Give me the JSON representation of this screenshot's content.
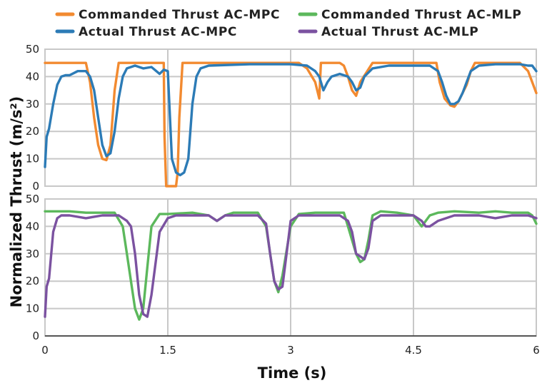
{
  "chart_data": [
    {
      "type": "line",
      "panel": "top",
      "xlim": [
        0,
        6
      ],
      "ylim": [
        0,
        50
      ],
      "yticks": [
        0,
        10,
        20,
        30,
        40,
        50
      ],
      "grid": true,
      "series": [
        {
          "name": "Commanded Thrust AC-MPC",
          "color": "#f28a30",
          "x": [
            0,
            0.5,
            0.55,
            0.6,
            0.65,
            0.7,
            0.75,
            0.8,
            0.85,
            0.9,
            1.0,
            1.2,
            1.45,
            1.46,
            1.48,
            1.55,
            1.6,
            1.62,
            1.64,
            1.68,
            1.8,
            2.0,
            2.5,
            3.0,
            3.1,
            3.2,
            3.3,
            3.35,
            3.37,
            3.4,
            3.6,
            3.65,
            3.7,
            3.75,
            3.8,
            3.85,
            4.0,
            4.5,
            4.78,
            4.82,
            4.88,
            4.95,
            5.0,
            5.05,
            5.1,
            5.15,
            5.2,
            5.25,
            5.5,
            5.8,
            5.9,
            5.95,
            6.0
          ],
          "y": [
            45,
            45,
            38,
            25,
            15,
            10,
            9.5,
            15,
            35,
            45,
            45,
            45,
            45,
            18,
            0,
            0,
            0,
            5,
            25,
            45,
            45,
            45,
            45,
            45,
            45,
            43,
            38,
            32,
            45,
            45,
            45,
            44,
            40,
            35,
            33,
            38,
            45,
            45,
            45,
            38,
            32,
            29.5,
            29,
            31,
            34,
            37,
            42,
            45,
            45,
            45,
            42,
            38,
            34
          ]
        },
        {
          "name": "Actual Thrust AC-MPC",
          "color": "#2c7bb6",
          "x": [
            0,
            0.02,
            0.05,
            0.1,
            0.15,
            0.2,
            0.25,
            0.3,
            0.4,
            0.5,
            0.55,
            0.6,
            0.65,
            0.7,
            0.75,
            0.8,
            0.85,
            0.9,
            0.95,
            1.0,
            1.1,
            1.2,
            1.3,
            1.4,
            1.45,
            1.5,
            1.55,
            1.6,
            1.65,
            1.7,
            1.75,
            1.8,
            1.85,
            1.9,
            2.0,
            2.5,
            3.0,
            3.2,
            3.3,
            3.35,
            3.4,
            3.45,
            3.5,
            3.6,
            3.7,
            3.75,
            3.8,
            3.85,
            3.9,
            4.0,
            4.2,
            4.5,
            4.7,
            4.8,
            4.85,
            4.9,
            4.95,
            5.0,
            5.05,
            5.1,
            5.15,
            5.2,
            5.3,
            5.5,
            5.8,
            5.9,
            5.95,
            6.0
          ],
          "y": [
            7,
            18,
            21,
            30,
            37,
            40,
            40.5,
            40.5,
            42,
            42,
            40,
            35,
            25,
            15,
            11,
            12,
            20,
            32,
            40,
            43,
            44,
            43,
            43.5,
            41,
            42.5,
            42,
            10,
            5,
            4,
            5,
            10,
            30,
            40,
            43,
            44,
            44.5,
            44.5,
            44,
            42,
            40,
            35,
            38,
            40,
            41,
            40,
            38,
            35,
            36,
            40,
            43,
            44,
            44,
            44,
            42,
            38,
            33,
            30,
            30,
            31,
            34,
            38,
            42,
            44,
            44.5,
            44.5,
            44,
            44,
            42
          ]
        }
      ]
    },
    {
      "type": "line",
      "panel": "bottom",
      "xlim": [
        0,
        6
      ],
      "ylim": [
        0,
        50
      ],
      "yticks": [
        0,
        10,
        20,
        30,
        40,
        50
      ],
      "grid": true,
      "series": [
        {
          "name": "Commanded Thrust AC-MLP",
          "color": "#5cb85c",
          "x": [
            0,
            0.3,
            0.5,
            0.7,
            0.85,
            0.95,
            1.0,
            1.05,
            1.1,
            1.15,
            1.2,
            1.25,
            1.3,
            1.4,
            1.5,
            1.8,
            2.0,
            2.1,
            2.2,
            2.3,
            2.5,
            2.6,
            2.7,
            2.75,
            2.8,
            2.85,
            2.9,
            3.0,
            3.1,
            3.3,
            3.5,
            3.65,
            3.7,
            3.75,
            3.8,
            3.85,
            3.9,
            3.95,
            4.0,
            4.1,
            4.3,
            4.5,
            4.55,
            4.6,
            4.65,
            4.7,
            4.8,
            5.0,
            5.3,
            5.5,
            5.7,
            5.85,
            5.9,
            5.95,
            6.0
          ],
          "y": [
            45.5,
            45.5,
            45,
            45,
            45,
            40,
            30,
            20,
            10,
            6,
            10,
            25,
            40,
            44.5,
            44.5,
            45,
            44,
            42,
            44,
            45,
            45,
            45,
            40,
            30,
            20,
            16,
            22,
            40,
            44.5,
            45,
            45,
            45,
            40,
            35,
            30,
            27,
            28,
            35,
            44,
            45.5,
            45,
            44,
            42,
            40,
            42,
            44,
            45,
            45.5,
            45,
            45.5,
            45,
            45,
            45,
            44,
            41
          ]
        },
        {
          "name": "Actual Thrust AC-MLP",
          "color": "#7b52a0",
          "x": [
            0,
            0.02,
            0.05,
            0.1,
            0.15,
            0.2,
            0.3,
            0.5,
            0.7,
            0.8,
            0.9,
            1.0,
            1.05,
            1.1,
            1.15,
            1.2,
            1.25,
            1.3,
            1.4,
            1.5,
            1.6,
            1.8,
            2.0,
            2.1,
            2.2,
            2.3,
            2.5,
            2.6,
            2.7,
            2.75,
            2.8,
            2.85,
            2.9,
            2.95,
            3.0,
            3.1,
            3.3,
            3.5,
            3.6,
            3.7,
            3.75,
            3.8,
            3.85,
            3.9,
            3.95,
            4.0,
            4.1,
            4.3,
            4.5,
            4.6,
            4.65,
            4.7,
            4.8,
            5.0,
            5.3,
            5.5,
            5.7,
            5.85,
            5.9,
            6.0
          ],
          "y": [
            7,
            18,
            21,
            38,
            43,
            44,
            44,
            43,
            44,
            44,
            44,
            42,
            40,
            30,
            15,
            8,
            7,
            15,
            38,
            43,
            44,
            44,
            44,
            42,
            44,
            44,
            44,
            44,
            41,
            30,
            20,
            17,
            18,
            30,
            42,
            44,
            44,
            44,
            44,
            42,
            38,
            30,
            29,
            28,
            32,
            42,
            44,
            44,
            44,
            42,
            40,
            40,
            42,
            44,
            44,
            43,
            44,
            44,
            44,
            43
          ]
        }
      ]
    }
  ],
  "axes": {
    "xticks": [
      {
        "value": 0,
        "label": "0"
      },
      {
        "value": 1.5,
        "label": "1.5"
      },
      {
        "value": 3,
        "label": "3"
      },
      {
        "value": 4.5,
        "label": "4.5"
      },
      {
        "value": 6,
        "label": "6"
      }
    ],
    "xlabel": "Time (s)",
    "ylabel": "Normalized Thrust (m/s²)"
  },
  "legend": {
    "placement": "top",
    "items": [
      {
        "label": "Commanded Thrust AC-MPC",
        "color": "#f28a30"
      },
      {
        "label": "Commanded Thrust AC-MLP",
        "color": "#5cb85c"
      },
      {
        "label": "Actual Thrust AC-MPC",
        "color": "#2c7bb6"
      },
      {
        "label": "Actual Thrust AC-MLP",
        "color": "#7b52a0"
      }
    ]
  }
}
